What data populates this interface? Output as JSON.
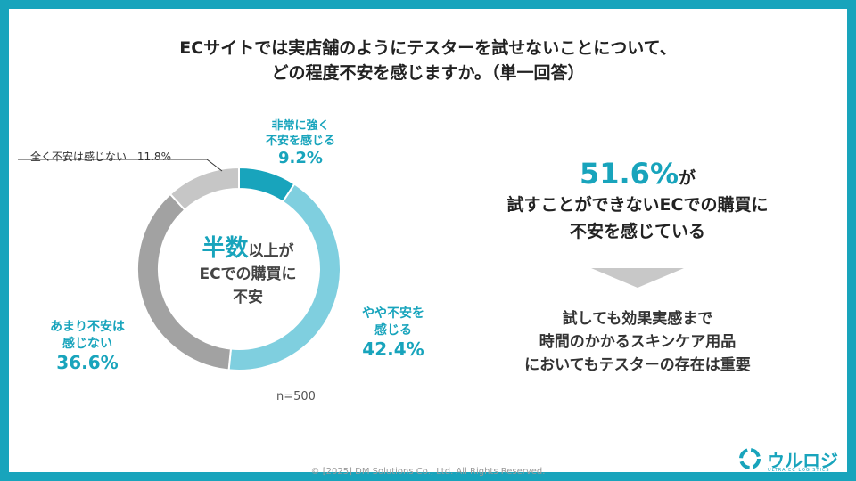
{
  "title": {
    "line1": "ECサイトでは実店舗のようにテスターを試せないことについて、",
    "line2": "どの程度不安を感じますか。（単一回答）"
  },
  "chart_data": {
    "type": "pie",
    "style": "donut",
    "categories": [
      "非常に強く不安を感じる",
      "やや不安を感じる",
      "あまり不安は感じない",
      "全く不安は感じない"
    ],
    "values": [
      9.2,
      42.4,
      36.6,
      11.8
    ],
    "colors": [
      "#18a4bc",
      "#7fcfdf",
      "#a2a2a2",
      "#c6c6c6"
    ],
    "labels": {
      "strong": {
        "text_line1": "非常に強く",
        "text_line2": "不安を感じる",
        "pct": "9.2%"
      },
      "some": {
        "text_line1": "やや不安を",
        "text_line2": "感じる",
        "pct": "42.4%"
      },
      "not_much": {
        "text_line1": "あまり不安は",
        "text_line2": "感じない",
        "pct": "36.6%"
      },
      "none": {
        "text": "全く不安は感じない",
        "pct": "11.8%"
      }
    },
    "center": {
      "emph": "半数",
      "rest1": "以上が",
      "line2": "ECでの購買に",
      "line3": "不安"
    },
    "n_label": "n=500"
  },
  "conclusion": {
    "big_number": "51.6%",
    "suffix": "が",
    "line2": "試すことができないECでの購買に",
    "line3": "不安を感じている"
  },
  "note": {
    "line1": "試しても効果実感まで",
    "line2": "時間のかかるスキンケア用品",
    "line3": "においてもテスターの存在は重要"
  },
  "footer": "© [2025] DM Solutions Co., Ltd. All Rights Reserved.",
  "logo": {
    "name": "ウルロジ",
    "tag": "ULTRA EC LOGISTICS"
  },
  "colors": {
    "accent": "#18a4bc",
    "light": "#7fcfdf",
    "gray": "#a2a2a2",
    "lightgray": "#c6c6c6"
  }
}
